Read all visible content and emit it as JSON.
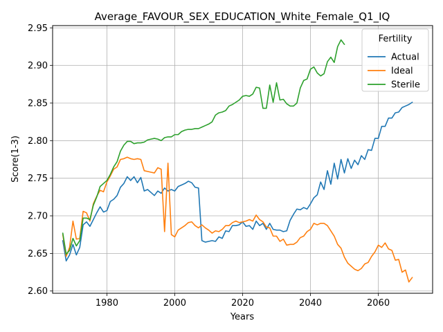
{
  "chart_data": {
    "type": "line",
    "title": "Average_FAVOUR_SEX_EDUCATION_White_Female_Q1_IQ",
    "xlabel": "Years",
    "ylabel": "Score(1-3)",
    "xlim": [
      1964,
      2076
    ],
    "ylim": [
      2.597,
      2.953
    ],
    "xticks": [
      1980,
      2000,
      2020,
      2040,
      2060
    ],
    "yticks": [
      2.6,
      2.65,
      2.7,
      2.75,
      2.8,
      2.85,
      2.9,
      2.95
    ],
    "ytick_labels": [
      "2.60",
      "2.65",
      "2.70",
      "2.75",
      "2.80",
      "2.85",
      "2.90",
      "2.95"
    ],
    "grid": true,
    "legend": {
      "title": "Fertility",
      "position": "top-right"
    },
    "series": [
      {
        "name": "Actual",
        "color": "#1f77b4",
        "x": [
          1967,
          1968,
          1969,
          1970,
          1971,
          1972,
          1973,
          1974,
          1975,
          1976,
          1977,
          1978,
          1979,
          1980,
          1981,
          1982,
          1983,
          1984,
          1985,
          1986,
          1987,
          1988,
          1989,
          1990,
          1991,
          1992,
          1993,
          1994,
          1995,
          1996,
          1997,
          1998,
          1999,
          2000,
          2001,
          2002,
          2003,
          2004,
          2005,
          2006,
          2007,
          2008,
          2009,
          2010,
          2011,
          2012,
          2013,
          2014,
          2015,
          2016,
          2017,
          2018,
          2019,
          2020,
          2021,
          2022,
          2023,
          2024,
          2025,
          2026,
          2027,
          2028,
          2029,
          2030,
          2031,
          2032,
          2033,
          2034,
          2035,
          2036,
          2037,
          2038,
          2039,
          2040,
          2041,
          2042,
          2043,
          2044,
          2045,
          2046,
          2047,
          2048,
          2049,
          2050,
          2051,
          2052,
          2053,
          2054,
          2055,
          2056,
          2057,
          2058,
          2059,
          2060,
          2061,
          2062,
          2063,
          2064,
          2065,
          2066,
          2067,
          2068,
          2069,
          2070
        ],
        "values": [
          2.667,
          2.64,
          2.648,
          2.662,
          2.648,
          2.658,
          2.688,
          2.692,
          2.686,
          2.695,
          2.704,
          2.712,
          2.705,
          2.707,
          2.719,
          2.722,
          2.727,
          2.738,
          2.743,
          2.752,
          2.747,
          2.752,
          2.744,
          2.751,
          2.733,
          2.735,
          2.731,
          2.727,
          2.733,
          2.73,
          2.737,
          2.733,
          2.735,
          2.733,
          2.739,
          2.741,
          2.743,
          2.746,
          2.744,
          2.738,
          2.737,
          2.667,
          2.665,
          2.666,
          2.667,
          2.666,
          2.672,
          2.67,
          2.68,
          2.679,
          2.687,
          2.687,
          2.688,
          2.692,
          2.686,
          2.687,
          2.682,
          2.693,
          2.687,
          2.69,
          2.682,
          2.69,
          2.682,
          2.681,
          2.681,
          2.679,
          2.68,
          2.694,
          2.702,
          2.709,
          2.708,
          2.711,
          2.709,
          2.716,
          2.724,
          2.728,
          2.745,
          2.735,
          2.76,
          2.742,
          2.77,
          2.749,
          2.775,
          2.757,
          2.776,
          2.763,
          2.774,
          2.768,
          2.78,
          2.775,
          2.788,
          2.787,
          2.803,
          2.803,
          2.819,
          2.819,
          2.83,
          2.83,
          2.837,
          2.838,
          2.844,
          2.846,
          2.848,
          2.851
        ]
      },
      {
        "name": "Ideal",
        "color": "#ff7f0e",
        "x": [
          1967,
          1968,
          1969,
          1970,
          1971,
          1972,
          1973,
          1974,
          1975,
          1976,
          1977,
          1978,
          1979,
          1980,
          1981,
          1982,
          1983,
          1984,
          1985,
          1986,
          1987,
          1988,
          1989,
          1990,
          1991,
          1992,
          1993,
          1994,
          1995,
          1996,
          1997,
          1998,
          1999,
          2000,
          2001,
          2002,
          2003,
          2004,
          2005,
          2006,
          2007,
          2008,
          2009,
          2010,
          2011,
          2012,
          2013,
          2014,
          2015,
          2016,
          2017,
          2018,
          2019,
          2020,
          2021,
          2022,
          2023,
          2024,
          2025,
          2026,
          2027,
          2028,
          2029,
          2030,
          2031,
          2032,
          2033,
          2034,
          2035,
          2036,
          2037,
          2038,
          2039,
          2040,
          2041,
          2042,
          2043,
          2044,
          2045,
          2046,
          2047,
          2048,
          2049,
          2050,
          2051,
          2052,
          2053,
          2054,
          2055,
          2056,
          2057,
          2058,
          2059,
          2060,
          2061,
          2062,
          2063,
          2064,
          2065,
          2066,
          2067,
          2068,
          2069,
          2070
        ],
        "values": [
          2.675,
          2.646,
          2.658,
          2.693,
          2.669,
          2.67,
          2.706,
          2.704,
          2.693,
          2.716,
          2.726,
          2.734,
          2.732,
          2.745,
          2.753,
          2.762,
          2.765,
          2.775,
          2.776,
          2.778,
          2.776,
          2.775,
          2.776,
          2.775,
          2.76,
          2.759,
          2.758,
          2.757,
          2.764,
          2.762,
          2.679,
          2.77,
          2.675,
          2.672,
          2.681,
          2.684,
          2.687,
          2.691,
          2.692,
          2.687,
          2.684,
          2.688,
          2.684,
          2.681,
          2.677,
          2.68,
          2.679,
          2.682,
          2.687,
          2.687,
          2.691,
          2.693,
          2.691,
          2.692,
          2.693,
          2.695,
          2.693,
          2.701,
          2.695,
          2.692,
          2.685,
          2.684,
          2.673,
          2.673,
          2.666,
          2.669,
          2.661,
          2.662,
          2.662,
          2.665,
          2.671,
          2.673,
          2.679,
          2.682,
          2.69,
          2.688,
          2.69,
          2.69,
          2.687,
          2.68,
          2.673,
          2.662,
          2.657,
          2.645,
          2.637,
          2.633,
          2.629,
          2.627,
          2.63,
          2.636,
          2.638,
          2.646,
          2.652,
          2.661,
          2.658,
          2.664,
          2.656,
          2.654,
          2.641,
          2.642,
          2.625,
          2.628,
          2.612,
          2.618
        ]
      },
      {
        "name": "Sterile",
        "color": "#2ca02c",
        "x": [
          1967,
          1968,
          1969,
          1970,
          1971,
          1972,
          1973,
          1974,
          1975,
          1976,
          1977,
          1978,
          1979,
          1980,
          1981,
          1982,
          1983,
          1984,
          1985,
          1986,
          1987,
          1988,
          1989,
          1990,
          1991,
          1992,
          1993,
          1994,
          1995,
          1996,
          1997,
          1998,
          1999,
          2000,
          2001,
          2002,
          2003,
          2004,
          2005,
          2006,
          2007,
          2008,
          2009,
          2010,
          2011,
          2012,
          2013,
          2014,
          2015,
          2016,
          2017,
          2018,
          2019,
          2020,
          2021,
          2022,
          2023,
          2024,
          2025,
          2026,
          2027,
          2028,
          2029,
          2030,
          2031,
          2032,
          2033,
          2034,
          2035,
          2036,
          2037,
          2038,
          2039,
          2040,
          2041,
          2042,
          2043,
          2044,
          2045,
          2046,
          2047,
          2048,
          2049,
          2050
        ],
        "values": [
          2.677,
          2.649,
          2.654,
          2.67,
          2.66,
          2.667,
          2.697,
          2.697,
          2.695,
          2.714,
          2.725,
          2.739,
          2.743,
          2.747,
          2.755,
          2.765,
          2.772,
          2.786,
          2.794,
          2.799,
          2.799,
          2.796,
          2.797,
          2.797,
          2.798,
          2.801,
          2.802,
          2.803,
          2.802,
          2.8,
          2.804,
          2.805,
          2.805,
          2.808,
          2.808,
          2.812,
          2.814,
          2.815,
          2.815,
          2.816,
          2.816,
          2.818,
          2.82,
          2.822,
          2.825,
          2.834,
          2.837,
          2.838,
          2.84,
          2.846,
          2.848,
          2.851,
          2.854,
          2.859,
          2.86,
          2.859,
          2.862,
          2.871,
          2.87,
          2.843,
          2.843,
          2.874,
          2.851,
          2.877,
          2.854,
          2.855,
          2.849,
          2.846,
          2.846,
          2.85,
          2.87,
          2.88,
          2.882,
          2.895,
          2.898,
          2.89,
          2.886,
          2.889,
          2.905,
          2.911,
          2.904,
          2.925,
          2.934,
          2.928
        ]
      }
    ]
  }
}
